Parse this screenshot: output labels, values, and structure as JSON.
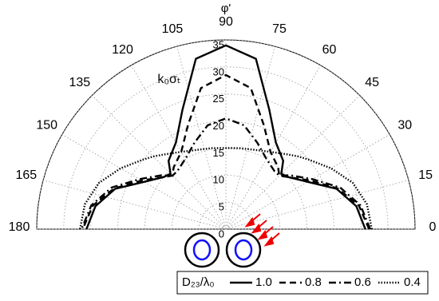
{
  "chart_data": {
    "type": "polar",
    "title": "φ'",
    "r_label": "k₀σₜ",
    "rlim": [
      0,
      35
    ],
    "rticks": [
      0,
      5,
      10,
      15,
      20,
      25,
      30,
      35
    ],
    "thetalim": [
      0,
      180
    ],
    "thetaticks": [
      0,
      15,
      30,
      45,
      60,
      75,
      90,
      105,
      120,
      135,
      150,
      165,
      180
    ],
    "grid": true,
    "legend_title": "D₂₃/λ₀",
    "x": [
      0,
      10,
      20,
      30,
      40,
      45,
      50,
      60,
      70,
      80,
      90,
      100,
      110,
      120,
      130,
      135,
      140,
      150,
      160,
      170,
      180
    ],
    "series": [
      {
        "name": "1.0",
        "color": "#000000",
        "dash": "solid",
        "values": [
          25.8,
          24.5,
          21.8,
          17.5,
          15,
          14.5,
          16.5,
          18.5,
          23.5,
          32,
          34,
          32,
          23.5,
          18.5,
          16.5,
          14.5,
          15,
          17.5,
          21.8,
          24.5,
          25.8
        ]
      },
      {
        "name": "0.8",
        "color": "#000000",
        "dash": "dashed",
        "values": [
          26.5,
          25,
          22,
          18,
          15,
          14,
          15,
          16.5,
          20.5,
          26.5,
          28.5,
          26.5,
          20.5,
          16.5,
          15,
          14,
          15,
          18,
          22,
          25,
          26.5
        ]
      },
      {
        "name": "0.6",
        "color": "#000000",
        "dash": "dashdot",
        "values": [
          26.7,
          25.3,
          22.5,
          18.5,
          15.5,
          14,
          14,
          15,
          17,
          19.5,
          20.5,
          19.5,
          17,
          15,
          14,
          14,
          15.5,
          18.5,
          22.5,
          25.3,
          26.7
        ]
      },
      {
        "name": "0.4",
        "color": "#000000",
        "dash": "dotted",
        "values": [
          27,
          26.5,
          25,
          22.5,
          20,
          19,
          18,
          16.5,
          15.6,
          15.2,
          15,
          15.2,
          15.6,
          16.5,
          18,
          19,
          20,
          22.5,
          25,
          26.5,
          27
        ]
      }
    ]
  }
}
